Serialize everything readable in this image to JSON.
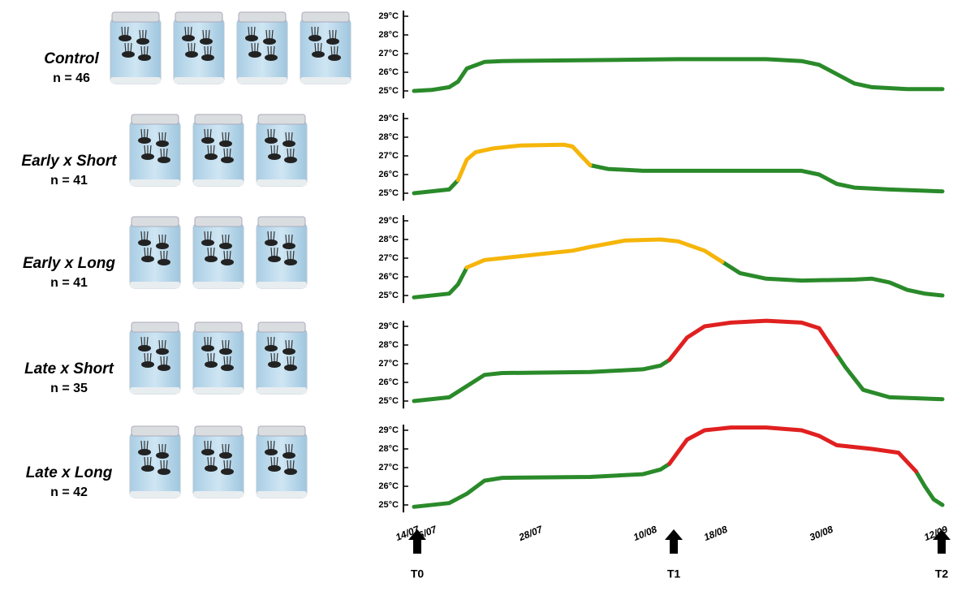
{
  "chart_data": [
    {
      "type": "line",
      "title": "Control",
      "subtitle": "n = 46",
      "x": [
        "14/07",
        "16/07",
        "18/07",
        "19/07",
        "20/07",
        "22/07",
        "24/07",
        "03/08",
        "13/08",
        "23/08",
        "27/08",
        "29/08",
        "31/08",
        "02/09",
        "04/09",
        "08/09",
        "12/09"
      ],
      "series": [
        {
          "color": "#2a8a2a",
          "values": [
            25.0,
            25.05,
            25.2,
            25.5,
            26.2,
            26.55,
            26.6,
            26.65,
            26.7,
            26.7,
            26.6,
            26.4,
            25.9,
            25.4,
            25.2,
            25.1,
            25.1
          ]
        }
      ],
      "xlim": [
        "14/07",
        "12/09"
      ],
      "ylim": [
        24.6,
        29.3
      ],
      "yticks": [
        {
          "value": 25,
          "label": "25°C"
        },
        {
          "value": 26,
          "label": "26°C"
        },
        {
          "value": 27,
          "label": "27°C"
        },
        {
          "value": 28,
          "label": "28°C"
        },
        {
          "value": 29,
          "label": "29°C"
        }
      ]
    },
    {
      "type": "line",
      "title": "Early x Short",
      "subtitle": "n = 41",
      "x": [
        "14/07",
        "18/07",
        "19/07",
        "20/07",
        "21/07",
        "23/07",
        "26/07",
        "31/07",
        "01/08",
        "02/08",
        "03/08",
        "05/08",
        "09/08",
        "23/08",
        "27/08",
        "29/08",
        "31/08",
        "02/09",
        "06/09",
        "12/09"
      ],
      "series": [
        {
          "color": "#2a8a2a",
          "values": [
            25.0,
            25.2,
            25.7,
            null,
            null,
            null,
            null,
            null,
            null,
            null,
            26.5,
            26.3,
            26.2,
            26.2,
            26.2,
            26.0,
            25.5,
            25.3,
            25.2,
            25.1
          ]
        },
        {
          "color": "#f5b50a",
          "values": [
            null,
            null,
            25.7,
            26.8,
            27.2,
            27.4,
            27.55,
            27.6,
            27.5,
            27.0,
            26.5,
            null,
            null,
            null,
            null,
            null,
            null,
            null,
            null,
            null
          ]
        }
      ],
      "xlim": [
        "14/07",
        "12/09"
      ],
      "ylim": [
        24.6,
        29.3
      ],
      "yticks": [
        {
          "value": 25,
          "label": "25°C"
        },
        {
          "value": 26,
          "label": "26°C"
        },
        {
          "value": 27,
          "label": "27°C"
        },
        {
          "value": 28,
          "label": "28°C"
        },
        {
          "value": 29,
          "label": "29°C"
        }
      ]
    },
    {
      "type": "line",
      "title": "Early x Long",
      "subtitle": "n = 41",
      "x": [
        "14/07",
        "18/07",
        "19/07",
        "20/07",
        "22/07",
        "26/07",
        "01/08",
        "03/08",
        "07/08",
        "11/08",
        "13/08",
        "16/08",
        "18/08",
        "20/08",
        "23/08",
        "27/08",
        "02/09",
        "04/09",
        "06/09",
        "08/09",
        "10/09",
        "12/09"
      ],
      "series": [
        {
          "color": "#2a8a2a",
          "values": [
            24.9,
            25.1,
            25.6,
            26.5,
            null,
            null,
            null,
            null,
            null,
            null,
            null,
            null,
            26.8,
            26.2,
            25.9,
            25.8,
            25.85,
            25.9,
            25.7,
            25.3,
            25.1,
            25.0
          ]
        },
        {
          "color": "#f5b50a",
          "values": [
            null,
            null,
            null,
            26.5,
            26.9,
            27.1,
            27.4,
            27.6,
            27.95,
            28.0,
            27.9,
            27.4,
            26.8,
            null,
            null,
            null,
            null,
            null,
            null,
            null,
            null,
            null
          ]
        }
      ],
      "xlim": [
        "14/07",
        "12/09"
      ],
      "ylim": [
        24.6,
        29.3
      ],
      "yticks": [
        {
          "value": 25,
          "label": "25°C"
        },
        {
          "value": 26,
          "label": "26°C"
        },
        {
          "value": 27,
          "label": "27°C"
        },
        {
          "value": 28,
          "label": "28°C"
        },
        {
          "value": 29,
          "label": "29°C"
        }
      ]
    },
    {
      "type": "line",
      "title": "Late x Short",
      "subtitle": "n = 35",
      "x": [
        "14/07",
        "18/07",
        "20/07",
        "22/07",
        "24/07",
        "03/08",
        "09/08",
        "11/08",
        "12/08",
        "14/08",
        "16/08",
        "19/08",
        "23/08",
        "27/08",
        "29/08",
        "31/08",
        "01/09",
        "03/09",
        "06/09",
        "12/09"
      ],
      "series": [
        {
          "color": "#2a8a2a",
          "values": [
            25.0,
            25.2,
            25.8,
            26.4,
            26.5,
            26.55,
            26.7,
            26.9,
            27.2,
            null,
            null,
            null,
            null,
            null,
            null,
            27.5,
            26.8,
            25.6,
            25.2,
            25.1
          ]
        },
        {
          "color": "#e02020",
          "values": [
            null,
            null,
            null,
            null,
            null,
            null,
            null,
            null,
            27.2,
            28.4,
            29.0,
            29.2,
            29.3,
            29.2,
            28.9,
            27.5,
            null,
            null,
            null,
            null
          ]
        }
      ],
      "xlim": [
        "14/07",
        "12/09"
      ],
      "ylim": [
        24.6,
        29.3
      ],
      "yticks": [
        {
          "value": 25,
          "label": "25°C"
        },
        {
          "value": 26,
          "label": "26°C"
        },
        {
          "value": 27,
          "label": "27°C"
        },
        {
          "value": 28,
          "label": "28°C"
        },
        {
          "value": 29,
          "label": "29°C"
        }
      ]
    },
    {
      "type": "line",
      "title": "Late x Long",
      "subtitle": "n = 42",
      "x": [
        "14/07",
        "18/07",
        "20/07",
        "22/07",
        "24/07",
        "03/08",
        "09/08",
        "11/08",
        "12/08",
        "14/08",
        "16/08",
        "19/08",
        "23/08",
        "27/08",
        "29/08",
        "31/08",
        "04/09",
        "07/09",
        "08/09",
        "09/09",
        "10/09",
        "11/09",
        "12/09"
      ],
      "series": [
        {
          "color": "#2a8a2a",
          "values": [
            24.9,
            25.1,
            25.6,
            26.3,
            26.45,
            26.5,
            26.65,
            26.9,
            27.2,
            null,
            null,
            null,
            null,
            null,
            null,
            null,
            null,
            null,
            null,
            26.8,
            26.0,
            25.3,
            25.0
          ]
        },
        {
          "color": "#e02020",
          "values": [
            null,
            null,
            null,
            null,
            null,
            null,
            null,
            null,
            27.2,
            28.5,
            29.0,
            29.15,
            29.15,
            29.0,
            28.7,
            28.2,
            28.0,
            27.8,
            27.3,
            26.8,
            null,
            null,
            null
          ]
        }
      ],
      "xlim": [
        "14/07",
        "12/09"
      ],
      "ylim": [
        24.6,
        29.3
      ],
      "yticks": [
        {
          "value": 25,
          "label": "25°C"
        },
        {
          "value": 26,
          "label": "26°C"
        },
        {
          "value": 27,
          "label": "27°C"
        },
        {
          "value": 28,
          "label": "28°C"
        },
        {
          "value": 29,
          "label": "29°C"
        }
      ],
      "xticks": [
        "14/07",
        "16/07",
        "28/07",
        "10/08",
        "18/08",
        "30/08",
        "12/09"
      ]
    }
  ],
  "markers": [
    "T0",
    "T1",
    "T2"
  ]
}
